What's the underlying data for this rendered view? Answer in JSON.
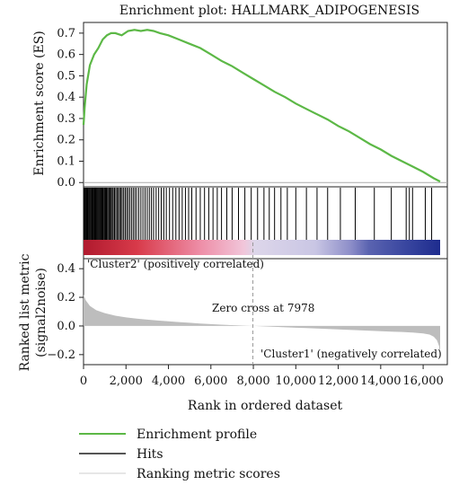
{
  "chart_data": {
    "type": "line",
    "title": "Enrichment plot: HALLMARK_ADIPOGENESIS",
    "colors": {
      "enrichment": "#5cb846",
      "hits": "#000000",
      "ranking": "#bdbdbd",
      "zero_line": "#aaaaaa",
      "positive_label": "#d9343a",
      "negative_label": "#3a5fa8"
    },
    "es_panel": {
      "ylabel": "Enrichment score (ES)",
      "ylim": [
        -0.02,
        0.75
      ],
      "yticks": [
        "0.0",
        "0.1",
        "0.2",
        "0.3",
        "0.4",
        "0.5",
        "0.6",
        "0.7"
      ],
      "series": [
        {
          "name": "Enrichment profile",
          "x": [
            0,
            50,
            150,
            300,
            500,
            700,
            900,
            1100,
            1300,
            1500,
            1800,
            2100,
            2400,
            2700,
            3000,
            3300,
            3600,
            4000,
            4500,
            5000,
            5500,
            6000,
            6500,
            7000,
            7500,
            8000,
            8500,
            9000,
            9500,
            10000,
            10500,
            11000,
            11500,
            12000,
            12500,
            13000,
            13500,
            14000,
            14500,
            15000,
            15500,
            16000,
            16500,
            16800
          ],
          "y": [
            0.27,
            0.35,
            0.46,
            0.55,
            0.6,
            0.63,
            0.67,
            0.69,
            0.7,
            0.7,
            0.69,
            0.71,
            0.715,
            0.71,
            0.715,
            0.71,
            0.7,
            0.69,
            0.67,
            0.65,
            0.63,
            0.6,
            0.57,
            0.545,
            0.515,
            0.485,
            0.455,
            0.425,
            0.4,
            0.37,
            0.345,
            0.32,
            0.295,
            0.265,
            0.24,
            0.21,
            0.18,
            0.155,
            0.125,
            0.1,
            0.075,
            0.05,
            0.02,
            0.005
          ]
        }
      ]
    },
    "hits_panel": {
      "hit_ranks": [
        20,
        60,
        90,
        130,
        170,
        200,
        240,
        280,
        310,
        350,
        390,
        420,
        460,
        500,
        530,
        570,
        610,
        650,
        690,
        730,
        770,
        810,
        850,
        890,
        930,
        980,
        1020,
        1060,
        1100,
        1150,
        1200,
        1250,
        1300,
        1350,
        1400,
        1460,
        1520,
        1580,
        1640,
        1700,
        1760,
        1820,
        1890,
        1960,
        2030,
        2100,
        2180,
        2260,
        2340,
        2420,
        2500,
        2600,
        2700,
        2800,
        2900,
        3000,
        3100,
        3200,
        3300,
        3420,
        3540,
        3660,
        3780,
        3900,
        4050,
        4200,
        4350,
        4500,
        4650,
        4800,
        4950,
        5100,
        5300,
        5500,
        5700,
        5900,
        6100,
        6300,
        6500,
        6750,
        7000,
        7300,
        7600,
        7900,
        8200,
        8500,
        8750,
        9000,
        9300,
        9600,
        10000,
        10500,
        11000,
        11500,
        12100,
        12800,
        13700,
        14500,
        15200,
        15350,
        15500,
        16100,
        16400
      ],
      "gradient_stops": [
        {
          "pos": 0.0,
          "color": "#b01a2e"
        },
        {
          "pos": 0.15,
          "color": "#d83a4a"
        },
        {
          "pos": 0.33,
          "color": "#ee8fa8"
        },
        {
          "pos": 0.45,
          "color": "#f1c6da"
        },
        {
          "pos": 0.48,
          "color": "#ddd6ea"
        },
        {
          "pos": 0.65,
          "color": "#c9c6e4"
        },
        {
          "pos": 0.75,
          "color": "#8c8dc8"
        },
        {
          "pos": 0.8,
          "color": "#5a63b0"
        },
        {
          "pos": 0.9,
          "color": "#3a47a0"
        },
        {
          "pos": 1.0,
          "color": "#1e2c8e"
        }
      ]
    },
    "metric_panel": {
      "ylabel": "Ranked list metric\n(signal2noise)",
      "ylim": [
        -0.27,
        0.47
      ],
      "yticks": [
        "0.4",
        "0.2",
        "0.0",
        "−0.2"
      ],
      "series": [
        {
          "name": "Ranking metric scores",
          "x": [
            0,
            100,
            300,
            600,
            1000,
            1500,
            2000,
            2500,
            3000,
            3500,
            4000,
            4500,
            5000,
            5500,
            6000,
            6500,
            7000,
            7500,
            7978,
            8500,
            9000,
            9500,
            10000,
            10500,
            11000,
            11500,
            12000,
            12500,
            13000,
            13500,
            14000,
            14500,
            15000,
            15500,
            16000,
            16300,
            16500,
            16650,
            16750,
            16800
          ],
          "y": [
            0.22,
            0.18,
            0.14,
            0.11,
            0.09,
            0.072,
            0.06,
            0.051,
            0.044,
            0.038,
            0.032,
            0.027,
            0.022,
            0.017,
            0.013,
            0.009,
            0.006,
            0.003,
            0.0,
            -0.003,
            -0.006,
            -0.009,
            -0.012,
            -0.015,
            -0.018,
            -0.021,
            -0.024,
            -0.027,
            -0.03,
            -0.033,
            -0.036,
            -0.039,
            -0.042,
            -0.046,
            -0.052,
            -0.06,
            -0.075,
            -0.1,
            -0.14,
            -0.2
          ]
        }
      ],
      "zero_cross": 7978,
      "zero_cross_label": "Zero cross at 7978",
      "positive_label": "'Cluster2' (positively correlated)",
      "negative_label": "'Cluster1' (negatively correlated)"
    },
    "x_axis": {
      "xlabel": "Rank in ordered dataset",
      "xlim": [
        0,
        16800
      ],
      "xticks": [
        0,
        2000,
        4000,
        6000,
        8000,
        10000,
        12000,
        14000,
        16000
      ],
      "xtick_labels": [
        "0",
        "2,000",
        "4,000",
        "6,000",
        "8,000",
        "10,000",
        "12,000",
        "14,000",
        "16,000"
      ]
    },
    "legend": {
      "placement": "bottom-left",
      "items": [
        {
          "label": "Enrichment profile",
          "color": "#5cb846"
        },
        {
          "label": "Hits",
          "color": "#555555"
        },
        {
          "label": "Ranking metric scores",
          "color": "#cccccc"
        }
      ]
    }
  }
}
